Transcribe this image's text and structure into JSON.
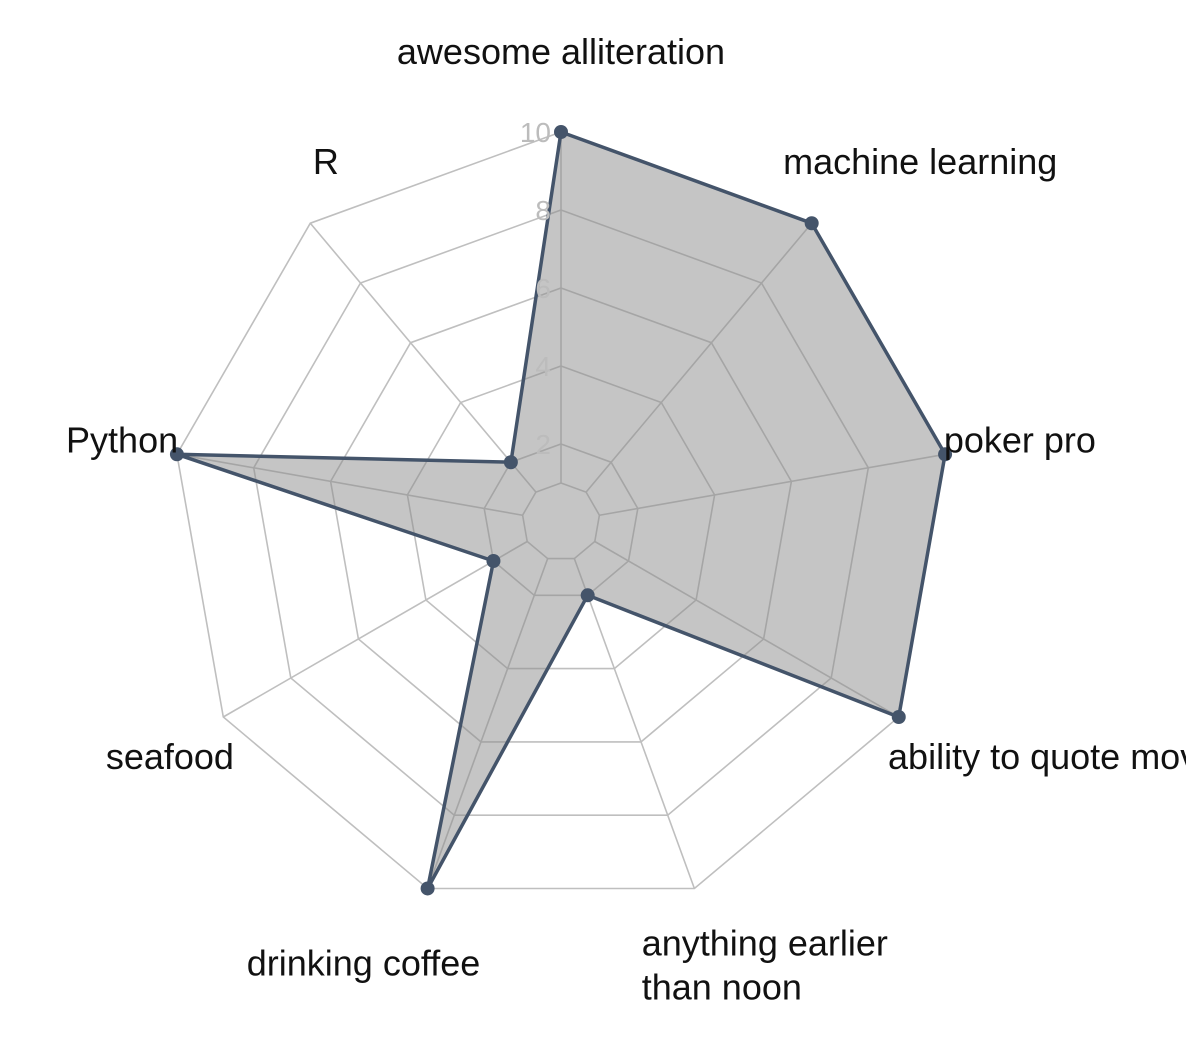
{
  "chart_data": {
    "type": "radar",
    "categories": [
      "awesome alliteration",
      "machine learning",
      "poker pro",
      "ability to quote movies",
      "anything earlier than noon",
      "drinking coffee",
      "seafood",
      "Python",
      "R"
    ],
    "values": [
      10,
      10,
      10,
      10,
      2,
      10,
      2,
      10,
      2
    ],
    "rlim": [
      0,
      10
    ],
    "ticks": [
      "2",
      "4",
      "6",
      "8",
      "10"
    ],
    "grid": true,
    "colors": {
      "fill": "#8c8c8c",
      "line": "#44546a",
      "grid": "#bfbfbf",
      "tick_text": "#bcbcbc",
      "label_text": "#111111"
    }
  }
}
